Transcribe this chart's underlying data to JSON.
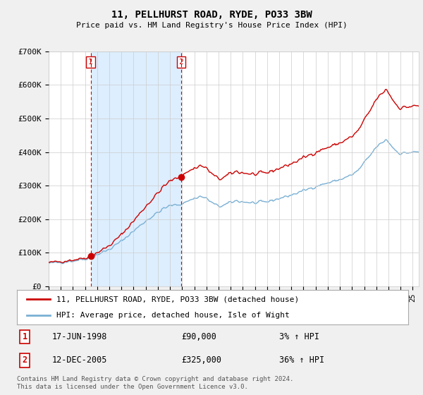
{
  "title": "11, PELLHURST ROAD, RYDE, PO33 3BW",
  "subtitle": "Price paid vs. HM Land Registry's House Price Index (HPI)",
  "legend_line1": "11, PELLHURST ROAD, RYDE, PO33 3BW (detached house)",
  "legend_line2": "HPI: Average price, detached house, Isle of Wight",
  "transaction1_date": "17-JUN-1998",
  "transaction1_price": 90000,
  "transaction1_hpi": "3% ↑ HPI",
  "transaction1_x": 1998.46,
  "transaction2_date": "12-DEC-2005",
  "transaction2_price": 325000,
  "transaction2_hpi": "36% ↑ HPI",
  "transaction2_x": 2005.92,
  "hpi_color": "#7ab0d4",
  "price_color": "#cc0000",
  "shade_color": "#ddeeff",
  "background_color": "#f0f0f0",
  "plot_bg_color": "#ffffff",
  "grid_color": "#cccccc",
  "ylim": [
    0,
    700000
  ],
  "xlim_start": 1995.0,
  "xlim_end": 2025.5,
  "footer": "Contains HM Land Registry data © Crown copyright and database right 2024.\nThis data is licensed under the Open Government Licence v3.0.",
  "yticks": [
    0,
    100000,
    200000,
    300000,
    400000,
    500000,
    600000,
    700000
  ],
  "ytick_labels": [
    "£0",
    "£100K",
    "£200K",
    "£300K",
    "£400K",
    "£500K",
    "£600K",
    "£700K"
  ]
}
